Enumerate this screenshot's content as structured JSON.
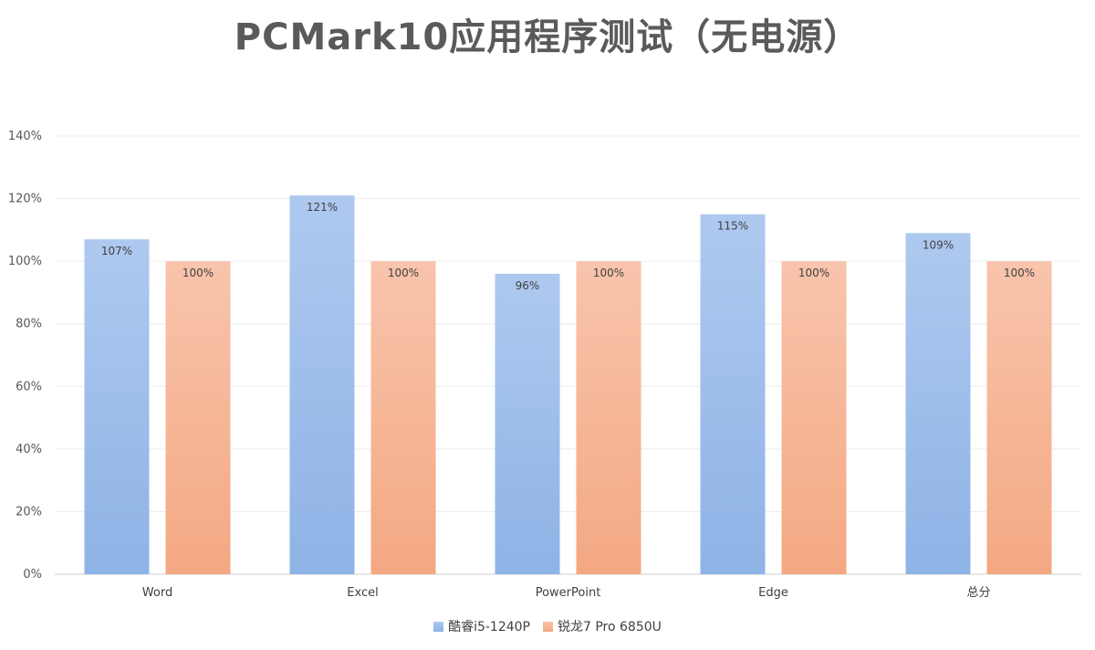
{
  "chart_data": {
    "type": "bar",
    "title": "PCMark10应用程序测试（无电源）",
    "categories": [
      "Word",
      "Excel",
      "PowerPoint",
      "Edge",
      "总分"
    ],
    "series": [
      {
        "name": "酷睿i5-1240P",
        "values": [
          107,
          121,
          96,
          115,
          109
        ],
        "labels": [
          "107%",
          "121%",
          "96%",
          "115%",
          "109%"
        ],
        "color_top": "#aec9ef",
        "color_bottom": "#8eb3e6"
      },
      {
        "name": "锐龙7 Pro 6850U",
        "values": [
          100,
          100,
          100,
          100,
          100
        ],
        "labels": [
          "100%",
          "100%",
          "100%",
          "100%",
          "100%"
        ],
        "color_top": "#f8c4ac",
        "color_bottom": "#f4a882"
      }
    ],
    "ylim": [
      0,
      140
    ],
    "yticks": [
      0,
      20,
      40,
      60,
      80,
      100,
      120,
      140
    ],
    "ytick_labels": [
      "0%",
      "20%",
      "40%",
      "60%",
      "80%",
      "100%",
      "120%",
      "140%"
    ],
    "grid": true,
    "legend_position": "bottom"
  }
}
